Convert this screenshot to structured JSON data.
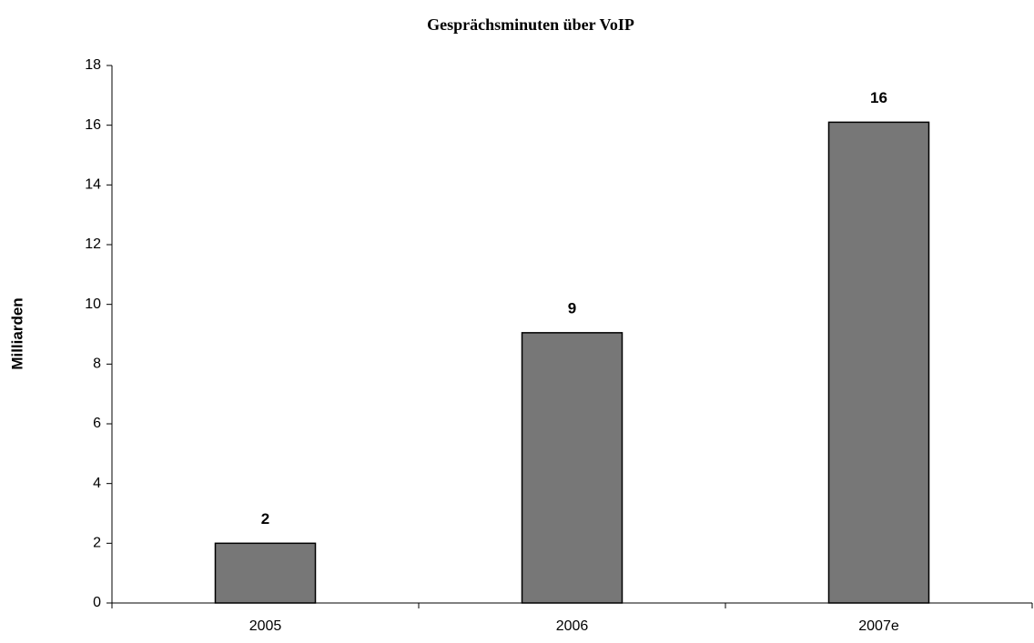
{
  "chart_data": {
    "type": "bar",
    "title": "Gesprächsminuten über VoIP",
    "y_label": "Milliarden",
    "categories": [
      "2005",
      "2006",
      "2007e"
    ],
    "values": [
      2,
      9.05,
      16.1
    ],
    "value_labels": [
      "2",
      "9",
      "16"
    ],
    "color": "#777777",
    "ylim": [
      0,
      18
    ],
    "yticks": [
      0,
      2,
      4,
      6,
      8,
      10,
      12,
      14,
      16,
      18
    ],
    "grid": false
  }
}
